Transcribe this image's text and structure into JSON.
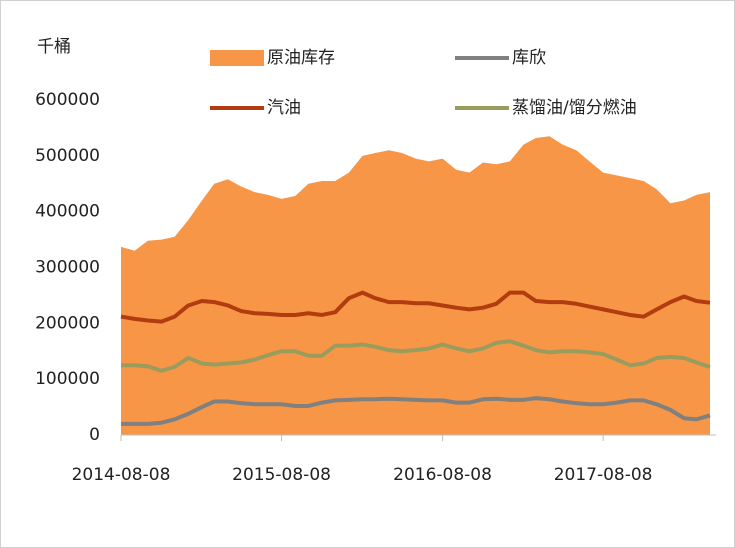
{
  "chart_data": {
    "type": "area",
    "ylabel": "千桶",
    "x": [
      "2014-08-08",
      "2014-09-08",
      "2014-10-08",
      "2014-11-08",
      "2014-12-08",
      "2015-01-08",
      "2015-02-08",
      "2015-03-08",
      "2015-04-08",
      "2015-05-08",
      "2015-06-08",
      "2015-07-08",
      "2015-08-08",
      "2015-09-08",
      "2015-10-08",
      "2015-11-08",
      "2015-12-08",
      "2016-01-08",
      "2016-02-08",
      "2016-03-08",
      "2016-04-08",
      "2016-05-08",
      "2016-06-08",
      "2016-07-08",
      "2016-08-08",
      "2016-09-08",
      "2016-10-08",
      "2016-11-08",
      "2016-12-08",
      "2017-01-08",
      "2017-02-08",
      "2017-03-08",
      "2017-04-08",
      "2017-05-08",
      "2017-06-08",
      "2017-07-08",
      "2017-08-08",
      "2017-09-08",
      "2017-10-08",
      "2017-11-08",
      "2017-12-08",
      "2018-01-08",
      "2018-02-08",
      "2018-03-08",
      "2018-04-08"
    ],
    "series": [
      {
        "name": "原油库存",
        "type": "area",
        "color": "#f79646",
        "values": [
          337000,
          330000,
          348000,
          350000,
          355000,
          385000,
          420000,
          450000,
          458000,
          445000,
          435000,
          430000,
          423000,
          428000,
          450000,
          455000,
          455000,
          470000,
          500000,
          505000,
          510000,
          505000,
          495000,
          490000,
          495000,
          475000,
          470000,
          488000,
          485000,
          490000,
          520000,
          532000,
          535000,
          520000,
          510000,
          490000,
          470000,
          465000,
          460000,
          455000,
          440000,
          415000,
          420000,
          430000,
          435000
        ]
      },
      {
        "name": "库欣",
        "type": "line",
        "color": "#808080",
        "values": [
          20000,
          20000,
          20000,
          22000,
          28000,
          38000,
          50000,
          60000,
          60000,
          57000,
          55000,
          55000,
          55000,
          52000,
          52000,
          58000,
          62000,
          63000,
          64000,
          64000,
          65000,
          64000,
          63000,
          62000,
          62000,
          58000,
          58000,
          64000,
          65000,
          63000,
          63000,
          66000,
          64000,
          60000,
          57000,
          55000,
          55000,
          58000,
          62000,
          62000,
          55000,
          45000,
          30000,
          28000,
          35000
        ]
      },
      {
        "name": "汽油",
        "type": "line",
        "color": "#b33b10",
        "values": [
          212000,
          208000,
          205000,
          203000,
          212000,
          232000,
          240000,
          238000,
          232000,
          222000,
          218000,
          217000,
          215000,
          215000,
          218000,
          215000,
          220000,
          245000,
          255000,
          245000,
          238000,
          238000,
          236000,
          236000,
          232000,
          228000,
          225000,
          228000,
          235000,
          255000,
          255000,
          240000,
          238000,
          238000,
          235000,
          230000,
          225000,
          220000,
          215000,
          212000,
          225000,
          238000,
          248000,
          240000,
          237000
        ]
      },
      {
        "name": "蒸馏油/馏分燃油",
        "type": "line",
        "color": "#9a9c5e",
        "values": [
          125000,
          125000,
          123000,
          115000,
          122000,
          138000,
          128000,
          126000,
          128000,
          130000,
          135000,
          143000,
          150000,
          150000,
          142000,
          142000,
          160000,
          160000,
          162000,
          158000,
          152000,
          150000,
          152000,
          155000,
          162000,
          155000,
          150000,
          155000,
          165000,
          168000,
          160000,
          152000,
          148000,
          150000,
          150000,
          148000,
          145000,
          135000,
          125000,
          128000,
          138000,
          140000,
          138000,
          130000,
          122000
        ]
      }
    ],
    "xlim": [
      "2014-08-08",
      "2018-04-08"
    ],
    "xticks": [
      "2014-08-08",
      "2015-08-08",
      "2016-08-08",
      "2017-08-08"
    ],
    "ylim": [
      0,
      600000
    ],
    "yticks": [
      0,
      100000,
      200000,
      300000,
      400000,
      500000,
      600000
    ]
  }
}
